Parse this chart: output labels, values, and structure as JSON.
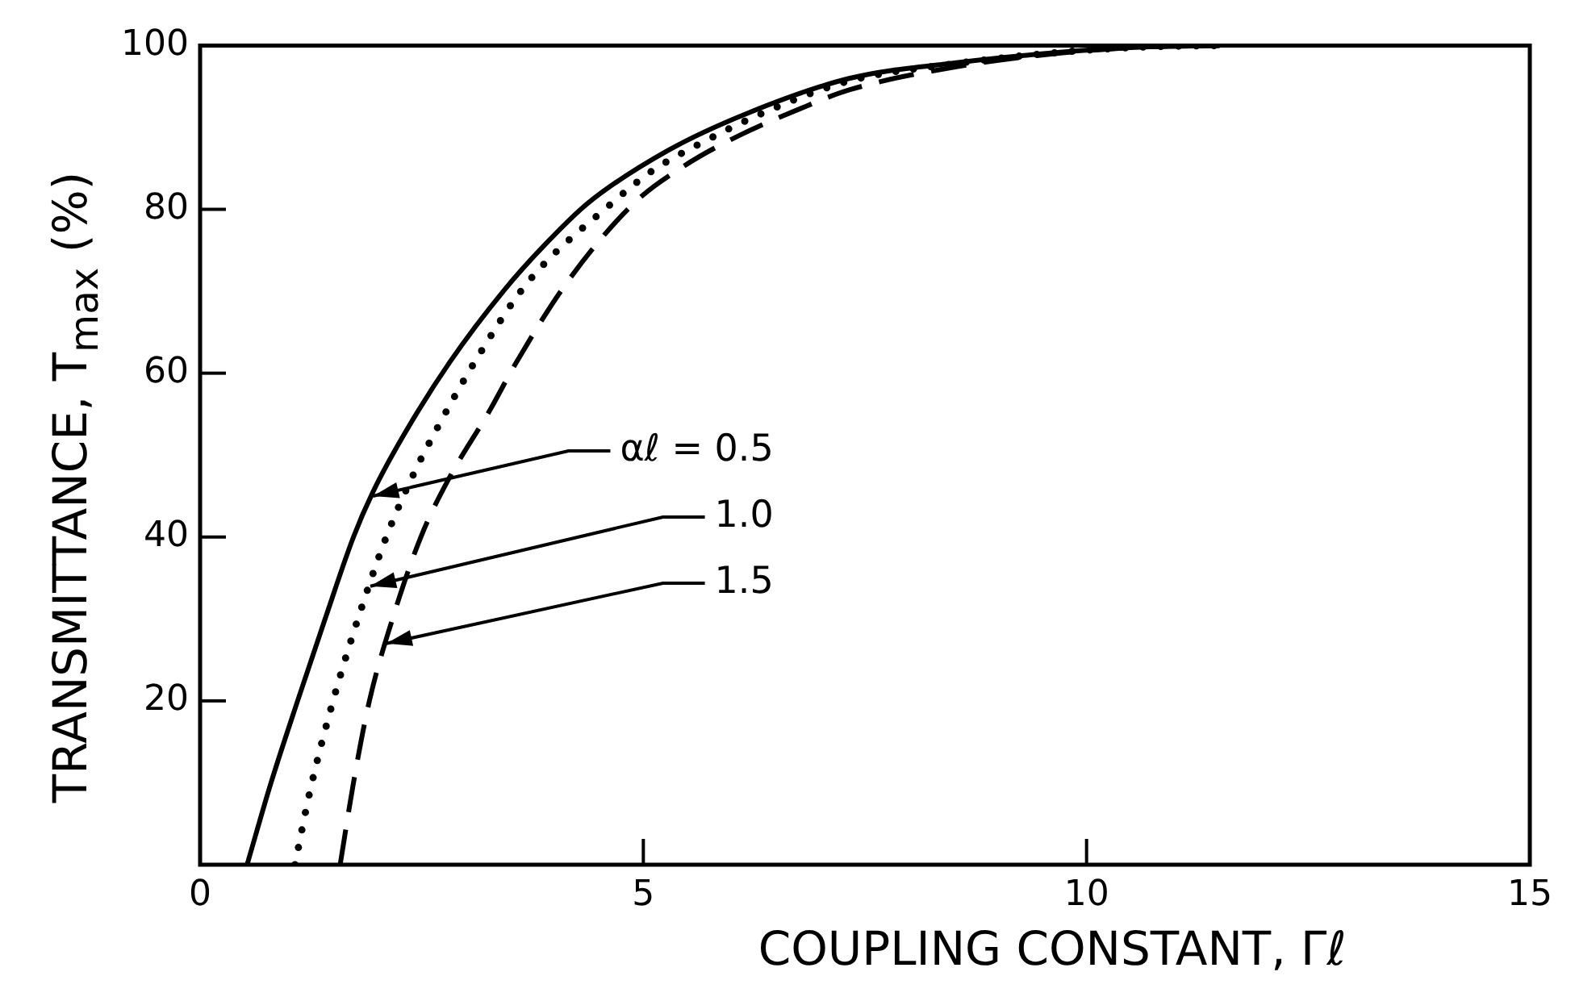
{
  "chart_data": {
    "type": "line",
    "xlabel": "COUPLING CONSTANT, Γℓ",
    "ylabel": "TRANSMITTANCE, T$_{max}$ (%)",
    "xlim": [
      0,
      15
    ],
    "ylim": [
      0,
      100
    ],
    "xticks": [
      0,
      5,
      10,
      15
    ],
    "yticks": [
      20,
      40,
      60,
      80,
      100
    ],
    "marker": "none",
    "series": [
      {
        "color": "#000000",
        "line_style": "solid",
        "x": [
          0.53,
          0.8,
          1.1,
          1.41,
          1.73,
          1.95,
          2.3,
          2.82,
          3.42,
          3.9,
          4.38,
          5.28,
          6.19,
          7.33,
          8.53,
          9.73,
          10.6,
          11.5
        ],
        "values": [
          0,
          10,
          20,
          30,
          40,
          45.5,
          52.5,
          61.4,
          70,
          75.8,
          80.8,
          87.2,
          91.8,
          96,
          97.9,
          99.2,
          99.8,
          100
        ]
      },
      {
        "color": "#000000",
        "line_style": "dotted",
        "x": [
          1.07,
          1.24,
          1.5,
          1.78,
          2.1,
          2.4,
          2.66,
          3.1,
          3.69,
          4.65,
          5.1,
          5.6,
          6.4,
          7.33,
          8.53,
          9.73,
          10.6,
          11.5
        ],
        "values": [
          0,
          9,
          20,
          30,
          40,
          47.5,
          53,
          61.4,
          71,
          80.8,
          84.7,
          87.8,
          92,
          95.7,
          97.8,
          99.2,
          99.8,
          100
        ]
      },
      {
        "color": "#000000",
        "line_style": "dashed",
        "x": [
          1.58,
          1.73,
          1.91,
          2.17,
          2.49,
          2.8,
          3.27,
          3.55,
          4.14,
          4.9,
          5.46,
          6.06,
          6.75,
          7.33,
          8.53,
          9.73,
          10.6,
          11.5
        ],
        "values": [
          0,
          10,
          20,
          30,
          40,
          47,
          55.5,
          61,
          71.1,
          80.8,
          85.3,
          88.9,
          92.2,
          94.6,
          97.4,
          99.1,
          99.8,
          100
        ]
      }
    ],
    "annotations": [
      {
        "text": "αℓ = 0.5",
        "x": 1.95,
        "y": 45
      },
      {
        "text": "1.0",
        "x": 1.92,
        "y": 34
      },
      {
        "text": "1.5",
        "x": 2.1,
        "y": 27
      }
    ]
  }
}
